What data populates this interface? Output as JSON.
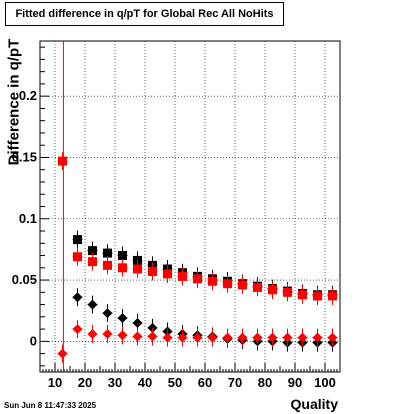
{
  "chart_data": {
    "type": "scatter",
    "title": "Fitted difference in q/pT for Global Rec All NoHits",
    "xlabel": "Quality",
    "ylabel": "Difference in q/pT",
    "xlim": [
      5,
      105
    ],
    "ylim": [
      -0.025,
      0.245
    ],
    "x_ticks": [
      10,
      20,
      30,
      40,
      50,
      60,
      70,
      80,
      90,
      100
    ],
    "y_ticks": [
      0,
      0.05,
      0.1,
      0.15,
      0.2
    ],
    "y_tick_labels": [
      "0",
      "0.05",
      "0.1",
      "0.15",
      "0.2"
    ],
    "grid": true,
    "vertical_line": {
      "x": 12.8,
      "color": "#ff0000"
    },
    "series": [
      {
        "marker": "square",
        "color": "#000000",
        "x": [
          17.5,
          22.5,
          27.5,
          32.5,
          37.5,
          42.5,
          47.5,
          52.5,
          57.5,
          62.5,
          67.5,
          72.5,
          77.5,
          82.5,
          87.5,
          92.5,
          97.5,
          102.5
        ],
        "y": [
          0.083,
          0.074,
          0.072,
          0.07,
          0.066,
          0.062,
          0.059,
          0.056,
          0.053,
          0.051,
          0.049,
          0.047,
          0.045,
          0.043,
          0.041,
          0.039,
          0.038,
          0.038
        ]
      },
      {
        "marker": "square",
        "color": "#ff0000",
        "x": [
          12.5,
          17.5,
          22.5,
          27.5,
          32.5,
          37.5,
          42.5,
          47.5,
          52.5,
          57.5,
          62.5,
          67.5,
          72.5,
          77.5,
          82.5,
          87.5,
          92.5,
          97.5,
          102.5
        ],
        "y": [
          0.147,
          0.069,
          0.065,
          0.062,
          0.06,
          0.059,
          0.057,
          0.055,
          0.053,
          0.051,
          0.049,
          0.047,
          0.046,
          0.044,
          0.042,
          0.04,
          0.038,
          0.037,
          0.037
        ]
      },
      {
        "marker": "diamond",
        "color": "#000000",
        "x": [
          17.5,
          22.5,
          27.5,
          32.5,
          37.5,
          42.5,
          47.5,
          52.5,
          57.5,
          62.5,
          67.5,
          72.5,
          77.5,
          82.5,
          87.5,
          92.5,
          97.5,
          102.5
        ],
        "y": [
          0.036,
          0.03,
          0.023,
          0.019,
          0.015,
          0.011,
          0.008,
          0.006,
          0.005,
          0.004,
          0.002,
          0.001,
          0.0,
          0.0,
          -0.001,
          -0.001,
          -0.001,
          -0.001
        ]
      },
      {
        "marker": "diamond",
        "color": "#ff0000",
        "x": [
          12.5,
          17.5,
          22.5,
          27.5,
          32.5,
          37.5,
          42.5,
          47.5,
          52.5,
          57.5,
          62.5,
          67.5,
          72.5,
          77.5,
          82.5,
          87.5,
          92.5,
          97.5,
          102.5
        ],
        "y": [
          -0.01,
          0.01,
          0.006,
          0.006,
          0.005,
          0.004,
          0.004,
          0.003,
          0.003,
          0.003,
          0.003,
          0.003,
          0.003,
          0.003,
          0.003,
          0.003,
          0.003,
          0.003,
          0.003
        ]
      }
    ]
  },
  "footer": {
    "timestamp": "Sun Jun  8 11:47:33 2025"
  }
}
